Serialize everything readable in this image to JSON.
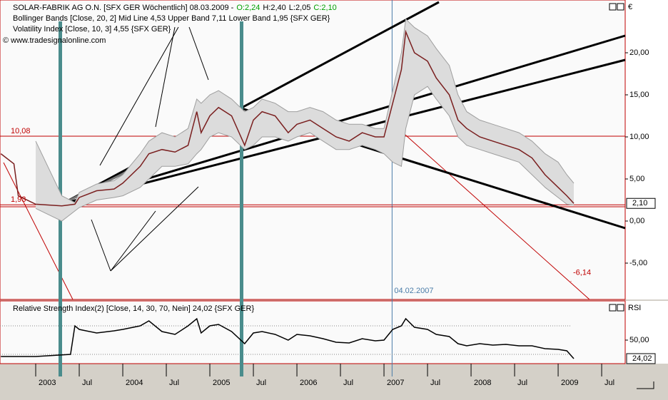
{
  "chart_data": [
    {
      "type": "line",
      "title": "SOLAR-FABRIK AG O.N. [SFX GER  Wöchentlich] 08.03.2009 -",
      "ohlc": [
        {
          "text": "O:2,24",
          "color": "#00a000"
        },
        {
          "text": "H:2,40",
          "color": "#000000"
        },
        {
          "text": "L:2,05",
          "color": "#000000"
        },
        {
          "text": "C:2,10",
          "color": "#00a000"
        }
      ],
      "indicators": [
        "Bollinger Bands [Close, 20, 2] Mid Line 4,53 Upper Band 7,11 Lower Band 1,95 {SFX GER}",
        "Volatility Index [Close, 10, 3] 4,55 {SFX GER}"
      ],
      "copyright": "© www.tradesignalonline.com",
      "unit": "€",
      "x": [
        2002.6,
        2002.75,
        2002.8,
        2003.0,
        2003.3,
        2003.45,
        2003.5,
        2003.7,
        2003.9,
        2004.0,
        2004.2,
        2004.3,
        2004.45,
        2004.6,
        2004.75,
        2004.85,
        2004.9,
        2005.0,
        2005.1,
        2005.25,
        2005.4,
        2005.5,
        2005.6,
        2005.75,
        2005.9,
        2006.0,
        2006.15,
        2006.3,
        2006.45,
        2006.6,
        2006.75,
        2006.9,
        2007.0,
        2007.1,
        2007.2,
        2007.25,
        2007.35,
        2007.5,
        2007.6,
        2007.75,
        2007.85,
        2007.95,
        2008.1,
        2008.25,
        2008.4,
        2008.55,
        2008.7,
        2008.85,
        2009.0,
        2009.1,
        2009.18
      ],
      "series": [
        {
          "color": "#9e9e9e",
          "values": [
            null,
            null,
            null,
            9.5,
            3.0,
            2.2,
            3.4,
            4.4,
            4.8,
            5.5,
            8.0,
            9.5,
            10.5,
            10.0,
            11.0,
            14.5,
            14.0,
            15.0,
            15.5,
            14.5,
            13.0,
            13.5,
            14.5,
            14.0,
            13.0,
            13.0,
            13.5,
            13.0,
            12.0,
            11.5,
            11.5,
            11.0,
            11.0,
            15.5,
            20.0,
            24.0,
            23.0,
            22.0,
            20.5,
            18.5,
            15.0,
            13.0,
            12.0,
            11.5,
            11.0,
            10.5,
            9.5,
            8.0,
            7.0,
            5.5,
            4.5
          ]
        },
        {
          "color": "#9e9e9e",
          "values": [
            null,
            null,
            null,
            1.5,
            0.0,
            1.2,
            1.6,
            2.5,
            2.8,
            3.0,
            4.0,
            5.0,
            6.5,
            6.5,
            6.8,
            8.0,
            8.5,
            10.0,
            10.5,
            10.0,
            8.5,
            9.0,
            10.0,
            10.0,
            9.5,
            10.0,
            10.5,
            9.5,
            8.5,
            8.5,
            9.0,
            8.5,
            8.0,
            7.0,
            6.5,
            11.0,
            15.0,
            16.0,
            14.5,
            12.5,
            10.0,
            9.0,
            8.5,
            8.0,
            7.5,
            7.0,
            5.5,
            4.0,
            2.8,
            2.0,
            1.9
          ]
        },
        {
          "color": "#7a1f1f",
          "values": [
            8.0,
            6.8,
            3.0,
            2.0,
            1.8,
            2.0,
            2.8,
            3.6,
            3.8,
            4.5,
            6.5,
            8.0,
            8.5,
            8.2,
            9.0,
            13.0,
            10.5,
            12.5,
            13.5,
            12.5,
            9.0,
            12.0,
            13.0,
            12.5,
            10.5,
            11.5,
            12.0,
            11.0,
            10.0,
            9.5,
            10.5,
            10.0,
            10.0,
            14.0,
            18.0,
            22.5,
            20.0,
            19.0,
            17.0,
            15.0,
            12.0,
            11.0,
            10.0,
            9.5,
            9.0,
            8.5,
            7.5,
            5.5,
            4.0,
            3.0,
            2.1
          ]
        }
      ],
      "band_fill": "#dcdcdc",
      "xlim": [
        2002.59,
        2009.77
      ],
      "ylim": [
        -9.32,
        26.27
      ],
      "yticks": [
        {
          "value": 20,
          "label": "20,00"
        },
        {
          "value": 15,
          "label": "15,00"
        },
        {
          "value": 10,
          "label": "10,00"
        },
        {
          "value": 5,
          "label": "5,00"
        },
        {
          "value": 0,
          "label": "0,00"
        },
        {
          "value": -5,
          "label": "-5,00"
        }
      ],
      "levels": [
        {
          "value": 10.08,
          "label": "10,08"
        },
        {
          "value": 1.93,
          "label": "1,93"
        }
      ],
      "last": {
        "value": 2.1,
        "label": "2,10"
      },
      "projection": {
        "value": -6.14,
        "label": "-6,14"
      },
      "marker": {
        "x": 2007.093,
        "label": "04.02.2007"
      }
    },
    {
      "type": "line",
      "title": "Relative Strength Index(2) [Close, 14, 30, 70, Nein] 24,02 {SFX GER}",
      "unit": "RSI",
      "x": [
        2002.6,
        2003.0,
        2003.4,
        2003.45,
        2003.5,
        2003.7,
        2003.9,
        2004.0,
        2004.2,
        2004.3,
        2004.45,
        2004.6,
        2004.75,
        2004.85,
        2004.9,
        2005.0,
        2005.1,
        2005.25,
        2005.4,
        2005.5,
        2005.6,
        2005.75,
        2005.9,
        2006.0,
        2006.15,
        2006.3,
        2006.45,
        2006.6,
        2006.75,
        2006.9,
        2007.0,
        2007.1,
        2007.2,
        2007.25,
        2007.35,
        2007.5,
        2007.6,
        2007.75,
        2007.85,
        2007.95,
        2008.1,
        2008.25,
        2008.4,
        2008.55,
        2008.7,
        2008.85,
        2009.0,
        2009.1,
        2009.18
      ],
      "series": [
        {
          "color": "#000000",
          "values": [
            27,
            27,
            30,
            70,
            65,
            60,
            63,
            65,
            70,
            77,
            62,
            58,
            70,
            80,
            60,
            70,
            72,
            62,
            45,
            60,
            62,
            58,
            50,
            58,
            56,
            52,
            47,
            46,
            52,
            49,
            50,
            65,
            70,
            80,
            68,
            65,
            58,
            55,
            45,
            42,
            45,
            43,
            44,
            42,
            42,
            38,
            37,
            35,
            24.02
          ]
        }
      ],
      "xlim": [
        2002.59,
        2009.77
      ],
      "ylim": [
        17,
        105
      ],
      "yticks": [
        {
          "value": 50,
          "label": "50,00"
        }
      ],
      "levels": [
        70,
        30
      ],
      "last": {
        "value": 24.02,
        "label": "24,02"
      },
      "xticks": [
        {
          "value": 2003,
          "label": "2003"
        },
        {
          "value": 2003.5,
          "label": "Jul"
        },
        {
          "value": 2004,
          "label": "2004"
        },
        {
          "value": 2004.5,
          "label": "Jul"
        },
        {
          "value": 2005,
          "label": "2005"
        },
        {
          "value": 2005.5,
          "label": "Jul"
        },
        {
          "value": 2006,
          "label": "2006"
        },
        {
          "value": 2006.5,
          "label": "Jul"
        },
        {
          "value": 2007,
          "label": "2007"
        },
        {
          "value": 2007.5,
          "label": "Jul"
        },
        {
          "value": 2008,
          "label": "2008"
        },
        {
          "value": 2008.5,
          "label": "Jul"
        },
        {
          "value": 2009,
          "label": "2009"
        },
        {
          "value": 2009.5,
          "label": "Jul"
        }
      ]
    }
  ]
}
